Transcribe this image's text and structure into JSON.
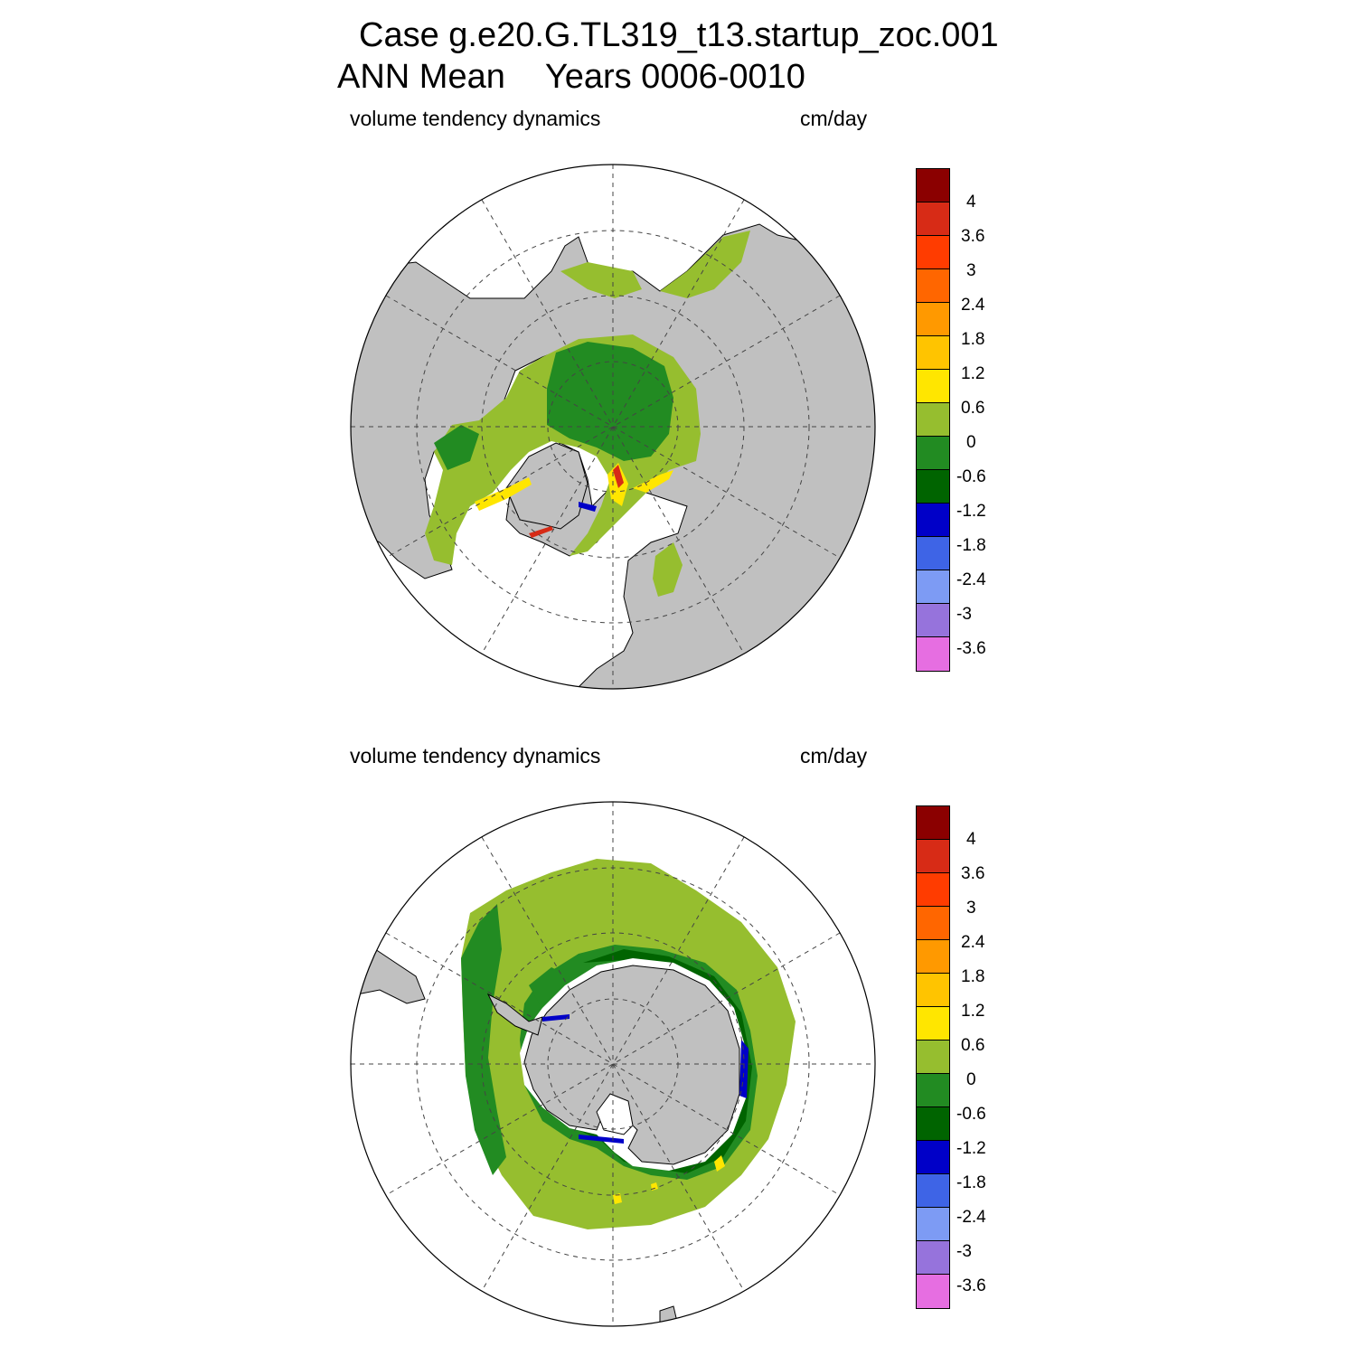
{
  "title": {
    "case": "Case g.e20.G.TL319_t13.startup_zoc.001",
    "mean": "ANN Mean",
    "years": "Years 0006-0010"
  },
  "panels": [
    {
      "name": "north",
      "variable": "volume tendency dynamics",
      "units": "cm/day"
    },
    {
      "name": "south",
      "variable": "volume tendency dynamics",
      "units": "cm/day"
    }
  ],
  "colorbar": {
    "colors": [
      "#8b0000",
      "#d72b16",
      "#ff3c00",
      "#ff6600",
      "#ff9900",
      "#ffc400",
      "#ffe600",
      "#96be2f",
      "#228b22",
      "#006400",
      "#0000c8",
      "#3e64e6",
      "#7d9bf4",
      "#9673dc",
      "#e66ee1"
    ],
    "labels": [
      "4",
      "3.6",
      "3",
      "2.4",
      "1.8",
      "1.2",
      "0.6",
      "0",
      "-0.6",
      "-1.2",
      "-1.8",
      "-2.4",
      "-3",
      "-3.6"
    ]
  },
  "map_colors": {
    "land": "#c0c0c0",
    "ocean": "#ffffff",
    "ice_light": "#96be2f",
    "ice_dark": "#228b22",
    "ice_darker": "#006400",
    "positive": "#ffe600",
    "strong_positive": "#d72b16",
    "negative": "#0000c8"
  }
}
